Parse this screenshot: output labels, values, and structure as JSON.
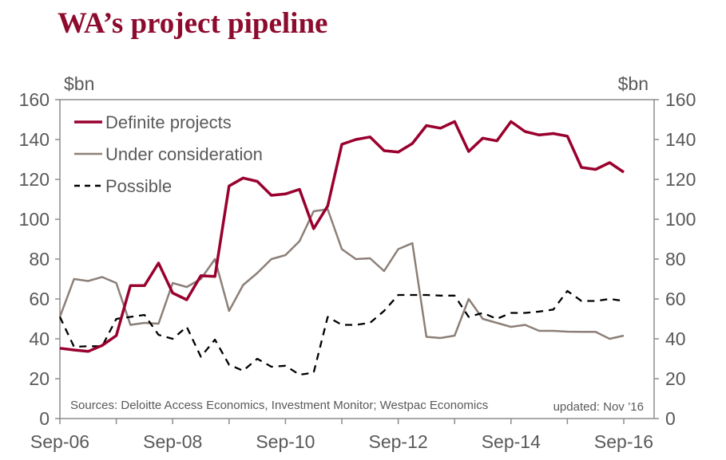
{
  "title": "WA’s project pipeline",
  "chart_data": {
    "type": "line",
    "title": "WA’s project pipeline",
    "ylabel_left": "$bn",
    "ylabel_right": "$bn",
    "ylim": [
      0,
      160
    ],
    "yticks": [
      0,
      20,
      40,
      60,
      80,
      100,
      120,
      140,
      160
    ],
    "x_start": "Sep-06",
    "x_end": "Sep-16",
    "frequency": "quarterly",
    "xtick_labels": [
      "Sep-06",
      "Sep-08",
      "Sep-10",
      "Sep-12",
      "Sep-14",
      "Sep-16"
    ],
    "source": "Sources: Deloitte Access Economics, Investment Monitor; Westpac Economics",
    "updated": "updated:  Nov ’16",
    "legend_position": "top-left",
    "series": [
      {
        "name": "Definite projects",
        "color": "#99002e",
        "style": "solid",
        "values": [
          35.3,
          34.4,
          33.7,
          36.7,
          41.6,
          66.7,
          66.7,
          78,
          63,
          59.6,
          71.7,
          71.3,
          116.7,
          120.7,
          119,
          112,
          112.7,
          115,
          95.3,
          106.7,
          137.6,
          140,
          141.3,
          134.4,
          133.7,
          138,
          147,
          145.7,
          149,
          134,
          140.7,
          139.3,
          149,
          144,
          142.3,
          143,
          141.7,
          126,
          125,
          128.4,
          123.6
        ]
      },
      {
        "name": "Under consideration",
        "color": "#8c7f78",
        "style": "solid",
        "values": [
          51,
          70,
          69,
          71,
          68,
          47,
          48,
          47.6,
          68,
          66,
          70,
          80,
          54,
          67,
          73,
          80,
          82,
          89,
          104,
          105,
          85,
          80,
          80.4,
          74,
          85,
          88,
          41,
          40.4,
          41.6,
          60,
          50,
          48,
          46,
          47,
          44,
          44,
          43.6,
          43.5,
          43.5,
          40,
          41.6
        ]
      },
      {
        "name": "Possible",
        "color": "#000000",
        "style": "dashed",
        "values": [
          51,
          36,
          36.3,
          36.3,
          50,
          51,
          52,
          42,
          40,
          46,
          31,
          39.6,
          27,
          24,
          30,
          26,
          26.5,
          22,
          23,
          51,
          47,
          47,
          48,
          54,
          62,
          62,
          62,
          61.7,
          61.7,
          51,
          53,
          50,
          53,
          53,
          53.7,
          54.7,
          64,
          59,
          59,
          60,
          59
        ]
      }
    ]
  }
}
